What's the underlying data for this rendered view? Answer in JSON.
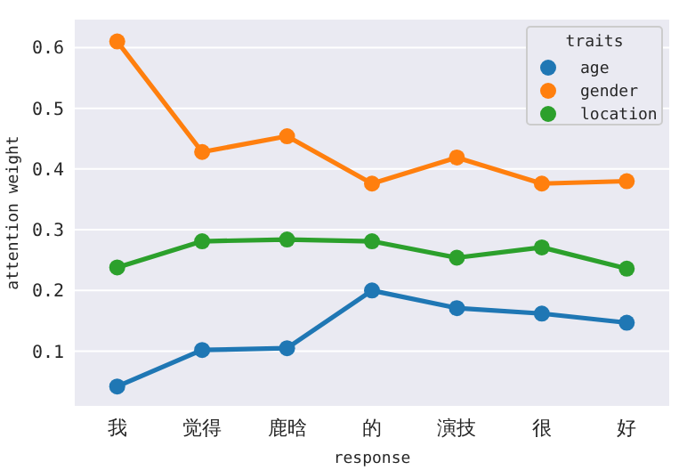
{
  "chart_data": {
    "type": "line",
    "xlabel": "response",
    "ylabel": "attention weight",
    "legend_title": "traits",
    "categories": [
      "我",
      "觉得",
      "鹿晗",
      "的",
      "演技",
      "很",
      "好"
    ],
    "series": [
      {
        "name": "age",
        "color": "#1f77b4",
        "values": [
          0.042,
          0.102,
          0.105,
          0.2,
          0.171,
          0.162,
          0.147
        ]
      },
      {
        "name": "gender",
        "color": "#ff7f0e",
        "values": [
          0.61,
          0.428,
          0.454,
          0.376,
          0.419,
          0.376,
          0.38
        ]
      },
      {
        "name": "location",
        "color": "#2ca02c",
        "values": [
          0.238,
          0.281,
          0.284,
          0.281,
          0.254,
          0.271,
          0.236
        ]
      }
    ],
    "ylim": [
      0.01,
      0.646
    ],
    "yticks": [
      {
        "value": 0.1,
        "label": "0.1"
      },
      {
        "value": 0.2,
        "label": "0.2"
      },
      {
        "value": 0.3,
        "label": "0.3"
      },
      {
        "value": 0.4,
        "label": "0.4"
      },
      {
        "value": 0.5,
        "label": "0.5"
      },
      {
        "value": 0.6,
        "label": "0.6"
      }
    ],
    "grid": "y",
    "legend": "top right",
    "marker": "circle",
    "line_style": "solid"
  }
}
